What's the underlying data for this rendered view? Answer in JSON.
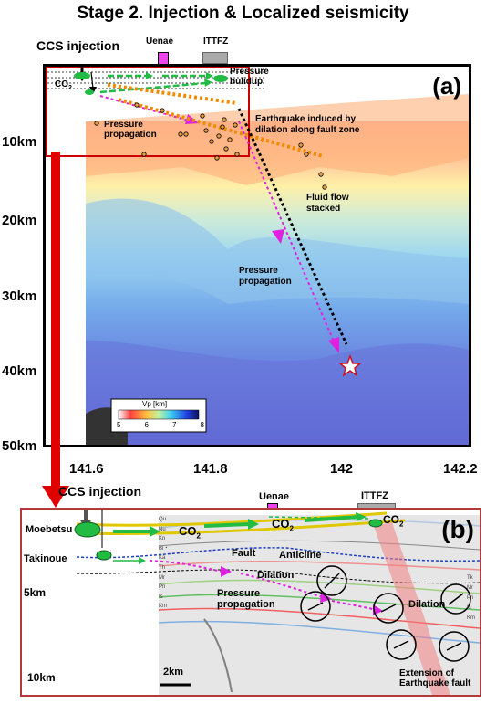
{
  "title": "Stage 2. Injection & Localized seismicity",
  "panel_a": {
    "label": "(a)",
    "ccs_injection": "CCS injection",
    "uenae": "Uenae",
    "ittfz": "ITTFZ",
    "co2": "CO",
    "co2_sub": "2",
    "pressure_buildup": [
      "Pressure",
      "bulidup"
    ],
    "pressure_propagation_top": [
      "Pressure",
      "propagation"
    ],
    "earthquake_induced": [
      "Earthquake induced by",
      "dilation along fault zone"
    ],
    "fluid_flow": [
      "Fluid flow",
      "stacked"
    ],
    "pressure_propagation_mid": [
      "Pressure",
      "propagation"
    ],
    "depth_labels": [
      "10km",
      "20km",
      "30km",
      "40km",
      "50km"
    ],
    "lon_labels": [
      "141.6",
      "141.8",
      "142",
      "142.2"
    ],
    "colorbar": {
      "title": "Vp [km]",
      "ticks": [
        "5",
        "6",
        "7",
        "8"
      ]
    }
  },
  "panel_b": {
    "label": "(b)",
    "ccs_injection": "CCS injection",
    "uenae": "Uenae",
    "ittfz": "ITTFZ",
    "moebetsu": "Moebetsu",
    "takinoue": "Takinoue",
    "co2": "CO",
    "co2_sub": "2",
    "fault": "Fault",
    "anticline": "Anticline",
    "dilation_left": "Dilation",
    "dilation_right": "Dilation",
    "pressure_propagation": [
      "Pressure",
      "propagation"
    ],
    "extension": [
      "Extension of",
      "Earthquake fault"
    ],
    "depth_labels": [
      "5km",
      "10km"
    ],
    "scale": "2km",
    "strata_left": [
      "Qu",
      "Nu",
      "Kn",
      "Bi・Ka",
      "Th",
      "Mr",
      "Pn",
      "Is",
      "Km"
    ],
    "strata_right": [
      "Tk",
      "Mr",
      "Pn",
      "Is",
      "Km"
    ]
  },
  "colors": {
    "frame_red": "#cc0000",
    "arrow_green": "#22bb44",
    "arrow_magenta": "#e020e0",
    "arrow_orange": "#f08a00",
    "uenae_box": "#ee44ee",
    "ittfz_box": "#aaaaaa"
  }
}
